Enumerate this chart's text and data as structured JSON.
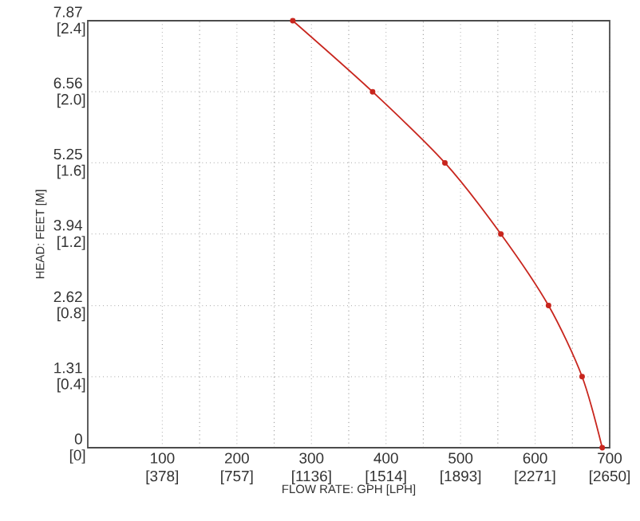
{
  "chart_data": {
    "type": "line",
    "xlabel": "FLOW RATE: GPH [LPH]",
    "ylabel": "HEAD: FEET [M]",
    "x": [
      275,
      382,
      479,
      554,
      618,
      663,
      690
    ],
    "series": [
      {
        "color": "#c8261e",
        "values": [
          7.87,
          6.56,
          5.25,
          3.94,
          2.62,
          1.31,
          0
        ]
      }
    ],
    "xlim": [
      0,
      700
    ],
    "ylim": [
      0,
      7.87
    ],
    "xticks": [
      100,
      200,
      300,
      400,
      500,
      600,
      700
    ],
    "yticks": [
      0,
      1.31,
      2.62,
      3.94,
      5.25,
      6.56,
      7.87
    ],
    "x2lim": [
      0,
      2650
    ],
    "x2ticks": [
      {
        "value": 378,
        "label": "[378]"
      },
      {
        "value": 757,
        "label": "[757]"
      },
      {
        "value": 1136,
        "label": "[1136]"
      },
      {
        "value": 1514,
        "label": "[1514]"
      },
      {
        "value": 1893,
        "label": "[1893]"
      },
      {
        "value": 2271,
        "label": "[2271]"
      },
      {
        "value": 2650,
        "label": "[2650]"
      }
    ],
    "y2lim": [
      0,
      2.4
    ],
    "y2ticks": [
      {
        "value": 0,
        "label": "[0]"
      },
      {
        "value": 0.4,
        "label": "[0.4]"
      },
      {
        "value": 0.8,
        "label": "[0.8]"
      },
      {
        "value": 1.2,
        "label": "[1.2]"
      },
      {
        "value": 1.6,
        "label": "[1.6]"
      },
      {
        "value": 2.0,
        "label": "[2.0]"
      },
      {
        "value": 2.4,
        "label": "[2.4]"
      }
    ],
    "grid": true,
    "marker": "circle",
    "line_style": "solid"
  }
}
